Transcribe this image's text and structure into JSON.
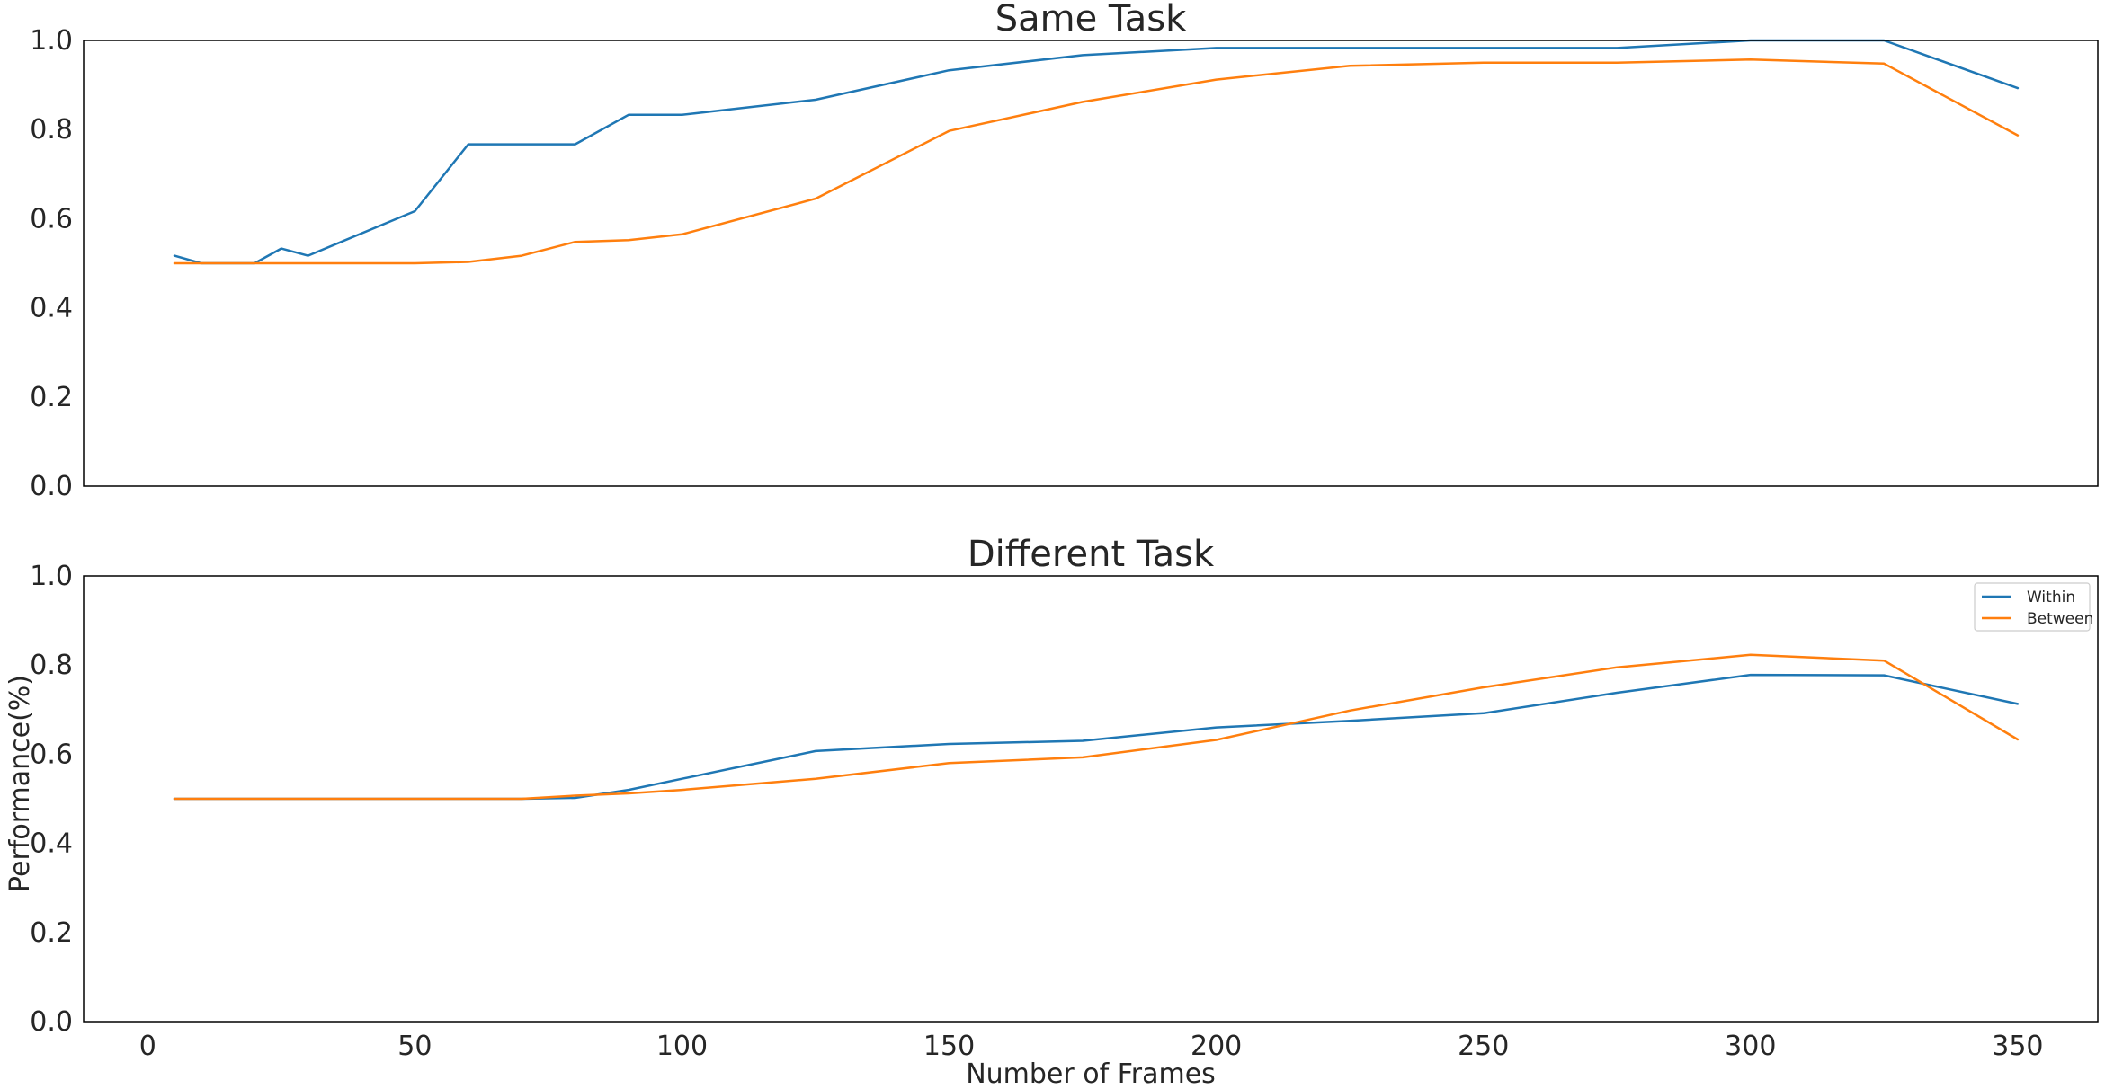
{
  "chart_data": [
    {
      "type": "line",
      "title": "Same Task",
      "xlabel": "",
      "ylabel": "",
      "xlim": [
        -12,
        365
      ],
      "ylim": [
        0,
        1
      ],
      "yticks": [
        0.0,
        0.2,
        0.4,
        0.6,
        0.8,
        1.0
      ],
      "ytick_labels": [
        "0.0",
        "0.2",
        "0.4",
        "0.6",
        "0.8",
        "1.0"
      ],
      "xticks_visible": false,
      "grid": false,
      "legend": false,
      "series": [
        {
          "name": "Within",
          "color": "#1f77b4",
          "x": [
            5,
            10,
            20,
            25,
            30,
            50,
            60,
            70,
            80,
            90,
            100,
            125,
            150,
            175,
            200,
            225,
            250,
            275,
            300,
            325,
            350
          ],
          "y": [
            0.517,
            0.5,
            0.5,
            0.533,
            0.517,
            0.617,
            0.767,
            0.767,
            0.767,
            0.833,
            0.833,
            0.867,
            0.933,
            0.967,
            0.983,
            0.983,
            0.983,
            0.983,
            1.0,
            1.0,
            0.893
          ]
        },
        {
          "name": "Between",
          "color": "#ff7f0e",
          "x": [
            5,
            10,
            20,
            25,
            30,
            50,
            60,
            70,
            80,
            90,
            100,
            125,
            150,
            175,
            200,
            225,
            250,
            275,
            300,
            325,
            350
          ],
          "y": [
            0.5,
            0.5,
            0.5,
            0.5,
            0.5,
            0.5,
            0.503,
            0.517,
            0.548,
            0.552,
            0.565,
            0.645,
            0.797,
            0.862,
            0.912,
            0.943,
            0.95,
            0.95,
            0.957,
            0.948,
            0.787
          ]
        }
      ]
    },
    {
      "type": "line",
      "title": "Different Task",
      "xlabel": "Number of Frames",
      "ylabel": "Performance(%)",
      "xlim": [
        -12,
        365
      ],
      "ylim": [
        0,
        1
      ],
      "xticks": [
        0,
        50,
        100,
        150,
        200,
        250,
        300,
        350
      ],
      "xtick_labels": [
        "0",
        "50",
        "100",
        "150",
        "200",
        "250",
        "300",
        "350"
      ],
      "yticks": [
        0.0,
        0.2,
        0.4,
        0.6,
        0.8,
        1.0
      ],
      "ytick_labels": [
        "0.0",
        "0.2",
        "0.4",
        "0.6",
        "0.8",
        "1.0"
      ],
      "grid": false,
      "legend": true,
      "legend_position": "top-right",
      "series": [
        {
          "name": "Within",
          "color": "#1f77b4",
          "x": [
            5,
            10,
            20,
            25,
            30,
            50,
            60,
            70,
            80,
            90,
            100,
            125,
            150,
            175,
            200,
            225,
            250,
            275,
            300,
            325,
            350
          ],
          "y": [
            0.5,
            0.5,
            0.5,
            0.5,
            0.5,
            0.5,
            0.5,
            0.5,
            0.502,
            0.52,
            0.545,
            0.607,
            0.623,
            0.63,
            0.66,
            0.675,
            0.692,
            0.738,
            0.778,
            0.777,
            0.713
          ]
        },
        {
          "name": "Between",
          "color": "#ff7f0e",
          "x": [
            5,
            10,
            20,
            25,
            30,
            50,
            60,
            70,
            80,
            90,
            100,
            125,
            150,
            175,
            200,
            225,
            250,
            275,
            300,
            325,
            350
          ],
          "y": [
            0.5,
            0.5,
            0.5,
            0.5,
            0.5,
            0.5,
            0.5,
            0.5,
            0.507,
            0.512,
            0.52,
            0.545,
            0.58,
            0.593,
            0.632,
            0.698,
            0.75,
            0.795,
            0.823,
            0.81,
            0.633
          ]
        }
      ]
    }
  ]
}
